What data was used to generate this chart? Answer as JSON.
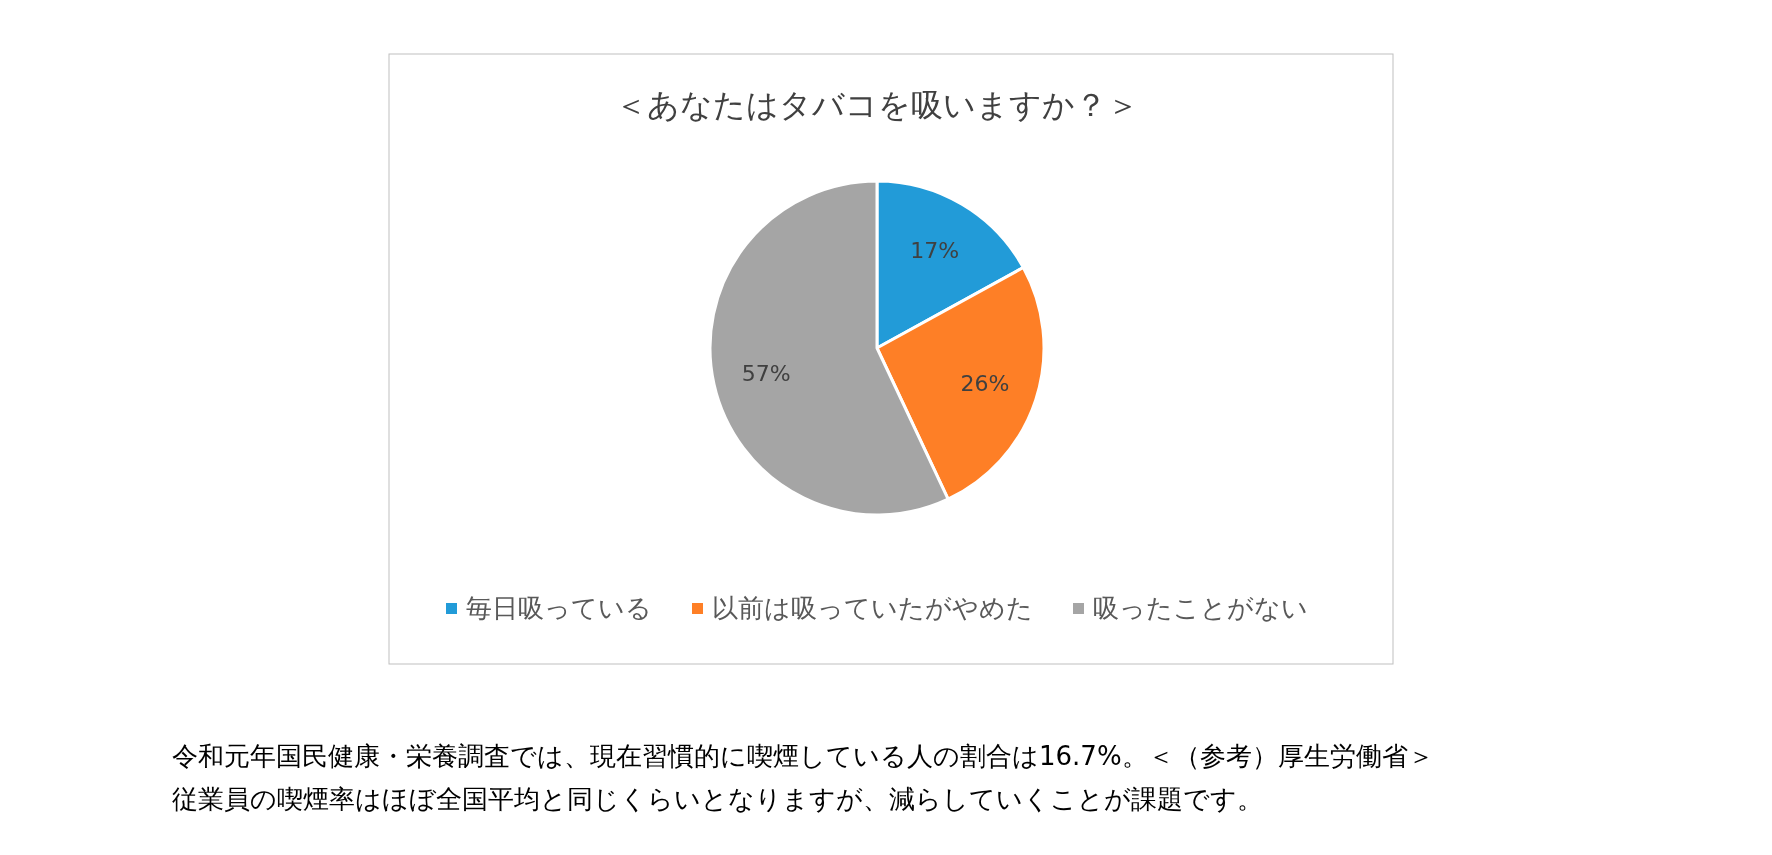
{
  "chart_data": {
    "type": "pie",
    "title": "＜あなたはタバコを吸いますか？＞",
    "categories": [
      "毎日吸っている",
      "以前は吸っていたがやめた",
      "吸ったことがない"
    ],
    "values": [
      17,
      26,
      57
    ],
    "colors": [
      "#229bd8",
      "#fe7f26",
      "#a5a5a5"
    ],
    "value_labels": [
      "17%",
      "26%",
      "57%"
    ],
    "legend": "bottom",
    "annotations": [
      "令和元年国民健康・栄養調査では、現在習慣的に喫煙している人の割合は16.7%。＜（参考）厚生労働省＞",
      "従業員の喫煙率はほぼ全国平均と同じくらいとなりますが、減らしていくことが課題です。"
    ]
  }
}
